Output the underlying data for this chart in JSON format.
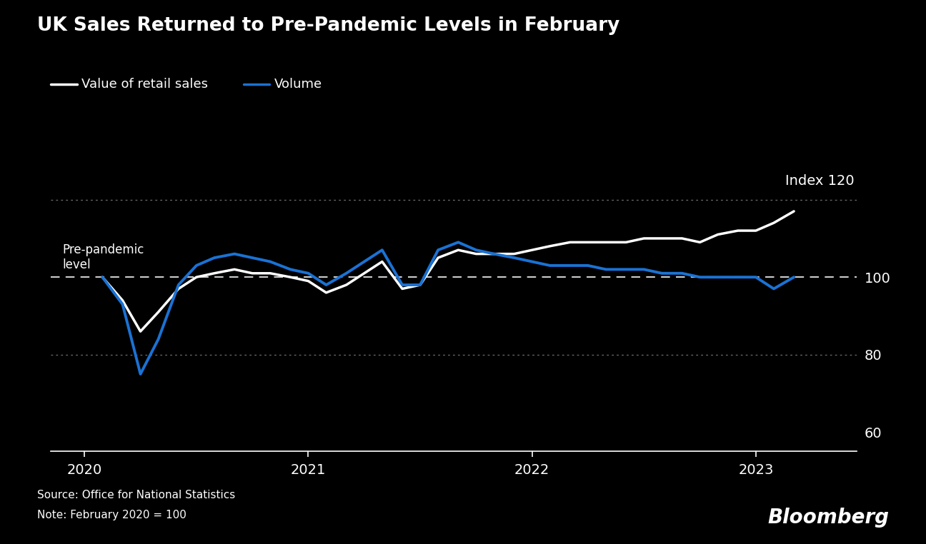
{
  "title": "UK Sales Returned to Pre-Pandemic Levels in February",
  "legend_labels": [
    "Value of retail sales",
    "Volume"
  ],
  "legend_colors": [
    "#ffffff",
    "#1a72d4"
  ],
  "source_text": "Source: Office for National Statistics",
  "note_text": "Note: February 2020 = 100",
  "bloomberg_text": "Bloomberg",
  "index_label": "Index 120",
  "prepandemic_label": "Pre-pandemic\nlevel",
  "background_color": "#000000",
  "text_color": "#ffffff",
  "grid_color": "#666666",
  "dashed_line_color": "#cccccc",
  "ylim": [
    55,
    128
  ],
  "yticks": [
    60,
    80,
    100,
    120
  ],
  "ytick_labels": [
    "60",
    "80",
    "100",
    ""
  ],
  "xlim_start": 2019.85,
  "xlim_end": 2023.45,
  "xtick_years": [
    2020,
    2021,
    2022,
    2023
  ],
  "prepandemic_y": 100,
  "value_series": {
    "color": "#ffffff",
    "linewidth": 2.5,
    "x": [
      2020.08,
      2020.17,
      2020.25,
      2020.33,
      2020.42,
      2020.5,
      2020.58,
      2020.67,
      2020.75,
      2020.83,
      2020.92,
      2021.0,
      2021.08,
      2021.17,
      2021.25,
      2021.33,
      2021.42,
      2021.5,
      2021.58,
      2021.67,
      2021.75,
      2021.83,
      2021.92,
      2022.0,
      2022.08,
      2022.17,
      2022.25,
      2022.33,
      2022.42,
      2022.5,
      2022.58,
      2022.67,
      2022.75,
      2022.83,
      2022.92,
      2023.0,
      2023.08,
      2023.17
    ],
    "y": [
      100,
      94,
      86,
      91,
      97,
      100,
      101,
      102,
      101,
      101,
      100,
      99,
      96,
      98,
      101,
      104,
      97,
      98,
      105,
      107,
      106,
      106,
      106,
      107,
      108,
      109,
      109,
      109,
      109,
      110,
      110,
      110,
      109,
      111,
      112,
      112,
      114,
      117
    ]
  },
  "volume_series": {
    "color": "#1a72d4",
    "linewidth": 2.8,
    "x": [
      2020.08,
      2020.17,
      2020.25,
      2020.33,
      2020.42,
      2020.5,
      2020.58,
      2020.67,
      2020.75,
      2020.83,
      2020.92,
      2021.0,
      2021.08,
      2021.17,
      2021.25,
      2021.33,
      2021.42,
      2021.5,
      2021.58,
      2021.67,
      2021.75,
      2021.83,
      2021.92,
      2022.0,
      2022.08,
      2022.17,
      2022.25,
      2022.33,
      2022.42,
      2022.5,
      2022.58,
      2022.67,
      2022.75,
      2022.83,
      2022.92,
      2023.0,
      2023.08,
      2023.17
    ],
    "y": [
      100,
      93,
      75,
      84,
      98,
      103,
      105,
      106,
      105,
      104,
      102,
      101,
      98,
      101,
      104,
      107,
      98,
      98,
      107,
      109,
      107,
      106,
      105,
      104,
      103,
      103,
      103,
      102,
      102,
      102,
      101,
      101,
      100,
      100,
      100,
      100,
      97,
      100
    ]
  }
}
